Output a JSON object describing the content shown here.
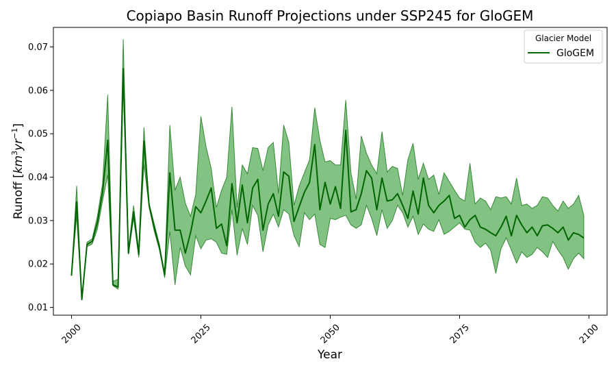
{
  "chart_data": {
    "type": "area",
    "title": "Copiapo Basin Runoff Projections under SSP245 for GloGEM",
    "xlabel": "Year",
    "ylabel_main": "Runoff [",
    "ylabel_unit": "km",
    "ylabel_sup1": "3",
    "ylabel_unit2": "yr",
    "ylabel_sup2": "−1",
    "ylabel_close": "]",
    "xlim": [
      1996.5,
      2103.5
    ],
    "ylim": [
      0.0082,
      0.0745
    ],
    "x_ticks": [
      2000,
      2025,
      2050,
      2075,
      2100
    ],
    "y_ticks": [
      0.01,
      0.02,
      0.03,
      0.04,
      0.05,
      0.06,
      0.07
    ],
    "y_tick_labels": [
      "0.01",
      "0.02",
      "0.03",
      "0.04",
      "0.05",
      "0.06",
      "0.07"
    ],
    "legend": {
      "title": "Glacier Model",
      "placement": "top-right"
    },
    "line_color": "#006400",
    "band_color": "#2e9a2e",
    "series": [
      {
        "name": "GloGEM",
        "x": [
          2000,
          2001,
          2002,
          2003,
          2004,
          2005,
          2006,
          2007,
          2008,
          2009,
          2010,
          2011,
          2012,
          2013,
          2014,
          2015,
          2016,
          2017,
          2018,
          2019,
          2020,
          2021,
          2022,
          2023,
          2024,
          2025,
          2026,
          2027,
          2028,
          2029,
          2030,
          2031,
          2032,
          2033,
          2034,
          2035,
          2036,
          2037,
          2038,
          2039,
          2040,
          2041,
          2042,
          2043,
          2044,
          2045,
          2046,
          2047,
          2048,
          2049,
          2050,
          2051,
          2052,
          2053,
          2054,
          2055,
          2056,
          2057,
          2058,
          2059,
          2060,
          2061,
          2062,
          2063,
          2064,
          2065,
          2066,
          2067,
          2068,
          2069,
          2070,
          2071,
          2072,
          2073,
          2074,
          2075,
          2076,
          2077,
          2078,
          2079,
          2080,
          2081,
          2082,
          2083,
          2084,
          2085,
          2086,
          2087,
          2088,
          2089,
          2090,
          2091,
          2092,
          2093,
          2094,
          2095,
          2096,
          2097,
          2098,
          2099
        ],
        "mean": [
          0.0173,
          0.0343,
          0.0118,
          0.0245,
          0.0252,
          0.0295,
          0.0365,
          0.0485,
          0.0152,
          0.0147,
          0.065,
          0.0225,
          0.032,
          0.0222,
          0.0483,
          0.0335,
          0.0283,
          0.0238,
          0.0175,
          0.041,
          0.0278,
          0.0278,
          0.0225,
          0.0272,
          0.0332,
          0.0318,
          0.0345,
          0.0375,
          0.0282,
          0.0292,
          0.0242,
          0.0385,
          0.0295,
          0.0382,
          0.0295,
          0.0375,
          0.0395,
          0.0278,
          0.0338,
          0.0362,
          0.031,
          0.0412,
          0.0402,
          0.0298,
          0.0332,
          0.0365,
          0.0388,
          0.0475,
          0.0325,
          0.0388,
          0.0338,
          0.0378,
          0.0328,
          0.0508,
          0.032,
          0.0325,
          0.0362,
          0.0415,
          0.0398,
          0.0325,
          0.0398,
          0.0345,
          0.0348,
          0.0362,
          0.0335,
          0.0305,
          0.0368,
          0.0315,
          0.0398,
          0.0335,
          0.0318,
          0.0335,
          0.0345,
          0.0358,
          0.0305,
          0.0312,
          0.0285,
          0.0302,
          0.0312,
          0.0285,
          0.028,
          0.0272,
          0.0265,
          0.0285,
          0.031,
          0.0265,
          0.0312,
          0.029,
          0.0272,
          0.0285,
          0.0265,
          0.0288,
          0.029,
          0.0282,
          0.0272,
          0.0285,
          0.0255,
          0.0272,
          0.0268,
          0.026
        ],
        "upper": [
          0.0173,
          0.038,
          0.0118,
          0.025,
          0.0258,
          0.031,
          0.0385,
          0.059,
          0.016,
          0.0165,
          0.0718,
          0.0235,
          0.0335,
          0.023,
          0.0515,
          0.034,
          0.0292,
          0.0245,
          0.0175,
          0.052,
          0.037,
          0.04,
          0.034,
          0.031,
          0.036,
          0.054,
          0.047,
          0.042,
          0.033,
          0.037,
          0.04,
          0.0562,
          0.033,
          0.0428,
          0.0408,
          0.0468,
          0.0466,
          0.0415,
          0.0468,
          0.048,
          0.0362,
          0.052,
          0.048,
          0.0335,
          0.038,
          0.041,
          0.044,
          0.056,
          0.0485,
          0.0435,
          0.0438,
          0.0428,
          0.0428,
          0.0578,
          0.041,
          0.035,
          0.0495,
          0.0455,
          0.0428,
          0.0408,
          0.0505,
          0.0412,
          0.0425,
          0.042,
          0.0358,
          0.044,
          0.0478,
          0.0395,
          0.0432,
          0.0395,
          0.0405,
          0.036,
          0.041,
          0.039,
          0.037,
          0.0352,
          0.0345,
          0.0432,
          0.0338,
          0.0352,
          0.0345,
          0.0325,
          0.0355,
          0.0352,
          0.0355,
          0.0338,
          0.0398,
          0.0335,
          0.0338,
          0.0328,
          0.0335,
          0.0355,
          0.0352,
          0.0335,
          0.0322,
          0.0345,
          0.0328,
          0.0338,
          0.0358,
          0.0312
        ],
        "lower": [
          0.0173,
          0.031,
          0.0118,
          0.024,
          0.0246,
          0.028,
          0.0345,
          0.0405,
          0.015,
          0.0142,
          0.061,
          0.0222,
          0.0305,
          0.0215,
          0.043,
          0.033,
          0.0275,
          0.0232,
          0.0168,
          0.0275,
          0.0152,
          0.0238,
          0.0195,
          0.0175,
          0.0265,
          0.0235,
          0.0255,
          0.0258,
          0.025,
          0.0225,
          0.0222,
          0.0325,
          0.022,
          0.0282,
          0.0245,
          0.0335,
          0.0312,
          0.0228,
          0.029,
          0.0315,
          0.0285,
          0.0325,
          0.0315,
          0.0265,
          0.024,
          0.0318,
          0.0302,
          0.0315,
          0.0245,
          0.0238,
          0.0305,
          0.0302,
          0.0308,
          0.0312,
          0.029,
          0.0282,
          0.029,
          0.0335,
          0.0305,
          0.0265,
          0.0325,
          0.0282,
          0.03,
          0.0335,
          0.0318,
          0.0285,
          0.031,
          0.0268,
          0.0292,
          0.028,
          0.0275,
          0.0302,
          0.0268,
          0.0275,
          0.0285,
          0.0295,
          0.028,
          0.0278,
          0.025,
          0.0238,
          0.0248,
          0.0232,
          0.0178,
          0.0235,
          0.026,
          0.0232,
          0.0202,
          0.0228,
          0.0215,
          0.0222,
          0.0238,
          0.0228,
          0.0215,
          0.0252,
          0.0232,
          0.0215,
          0.0188,
          0.0212,
          0.0225,
          0.0212
        ]
      }
    ]
  }
}
